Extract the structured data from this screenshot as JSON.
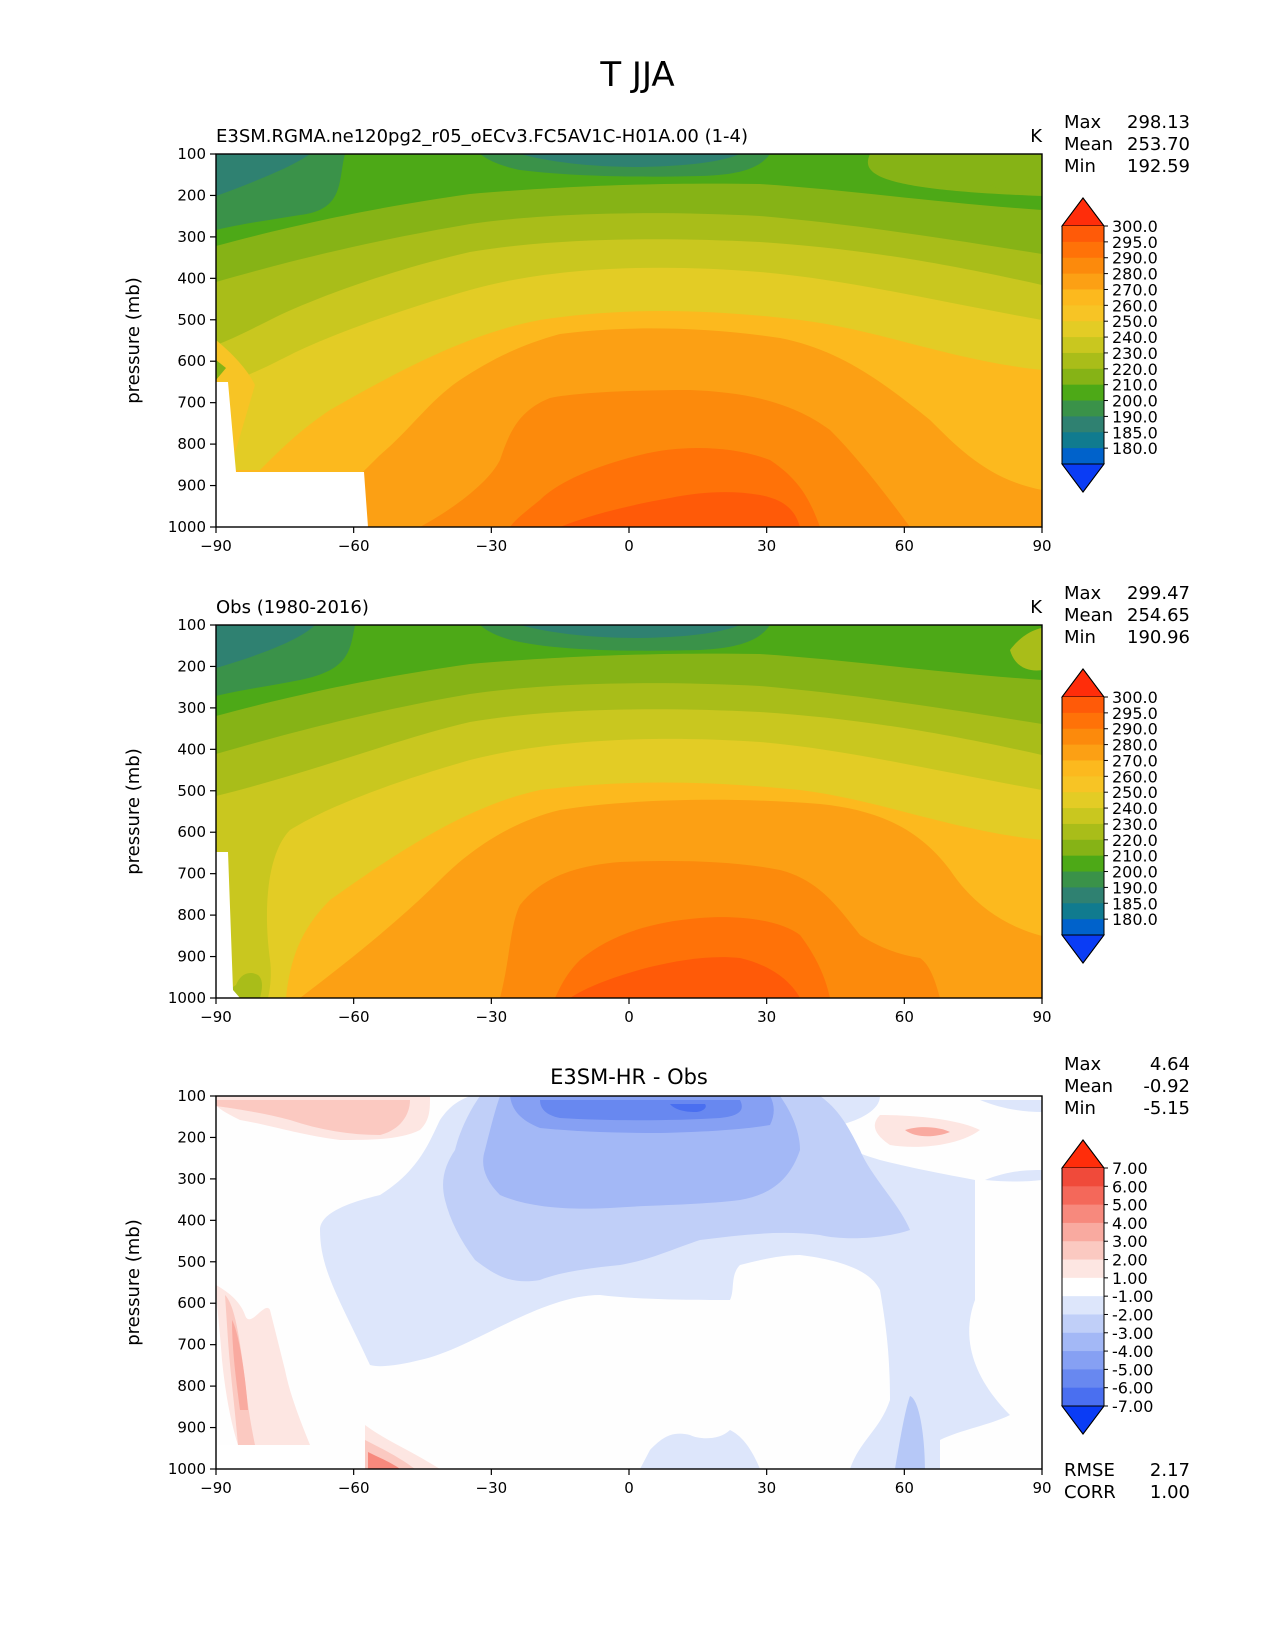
{
  "chart_data": {
    "type": "heatmap",
    "title": "T JJA",
    "xlim": [
      -90,
      90
    ],
    "ylim": [
      1000,
      100
    ],
    "x_ticks": [
      "−90",
      "−60",
      "−30",
      "0",
      "30",
      "60",
      "90"
    ],
    "y_ticks": [
      "100",
      "200",
      "300",
      "400",
      "500",
      "600",
      "700",
      "800",
      "900",
      "1000"
    ],
    "panels": [
      {
        "id": "model",
        "title_left": "E3SM.RGMA.ne120pg2_r05_oECv3.FC5AV1C-H01A.00 (1-4)",
        "title_center": "",
        "units": "K",
        "ylabel": "pressure (mb)",
        "stats": [
          {
            "label": "Max",
            "value": "298.13"
          },
          {
            "label": "Mean",
            "value": "253.70"
          },
          {
            "label": "Min",
            "value": "192.59"
          }
        ],
        "colorbar_levels": [
          "300.0",
          "295.0",
          "290.0",
          "280.0",
          "270.0",
          "260.0",
          "250.0",
          "240.0",
          "230.0",
          "220.0",
          "210.0",
          "200.0",
          "190.0",
          "185.0",
          "180.0"
        ],
        "colorbar_colors": [
          "#ff2d0a",
          "#ff5a08",
          "#ff7208",
          "#fc8a0c",
          "#fca014",
          "#fcb91e",
          "#f7c425",
          "#e3cc25",
          "#c9c71f",
          "#a9bd19",
          "#86b316",
          "#4da917",
          "#3a9249",
          "#2f8171",
          "#107b8f",
          "#0062cb",
          "#0a3cf5"
        ],
        "bottom_stats": []
      },
      {
        "id": "obs",
        "title_left": "Obs (1980-2016)",
        "title_center": "",
        "units": "K",
        "ylabel": "pressure (mb)",
        "stats": [
          {
            "label": "Max",
            "value": "299.47"
          },
          {
            "label": "Mean",
            "value": "254.65"
          },
          {
            "label": "Min",
            "value": "190.96"
          }
        ],
        "colorbar_levels": [
          "300.0",
          "295.0",
          "290.0",
          "280.0",
          "270.0",
          "260.0",
          "250.0",
          "240.0",
          "230.0",
          "220.0",
          "210.0",
          "200.0",
          "190.0",
          "185.0",
          "180.0"
        ],
        "colorbar_colors": [
          "#ff2d0a",
          "#ff5a08",
          "#ff7208",
          "#fc8a0c",
          "#fca014",
          "#fcb91e",
          "#f7c425",
          "#e3cc25",
          "#c9c71f",
          "#a9bd19",
          "#86b316",
          "#4da917",
          "#3a9249",
          "#2f8171",
          "#107b8f",
          "#0062cb",
          "#0a3cf5"
        ],
        "bottom_stats": []
      },
      {
        "id": "diff",
        "title_left": "",
        "title_center": "E3SM-HR - Obs",
        "units": "",
        "ylabel": "pressure (mb)",
        "stats": [
          {
            "label": "Max",
            "value": "4.64"
          },
          {
            "label": "Mean",
            "value": "-0.92"
          },
          {
            "label": "Min",
            "value": "-5.15"
          }
        ],
        "colorbar_levels": [
          "7.00",
          "6.00",
          "5.00",
          "4.00",
          "3.00",
          "2.00",
          "1.00",
          "-1.00",
          "-2.00",
          "-3.00",
          "-4.00",
          "-5.00",
          "-6.00",
          "-7.00"
        ],
        "colorbar_colors": [
          "#ff2d0a",
          "#f04a3a",
          "#f4685a",
          "#f7897d",
          "#f9aaa0",
          "#fbc9c1",
          "#fde6e2",
          "#ffffff",
          "#dde6fb",
          "#c0cff8",
          "#a3b8f6",
          "#86a0f3",
          "#6888f0",
          "#4a6ff0",
          "#0a3cf5"
        ],
        "bottom_stats": [
          {
            "label": "RMSE",
            "value": "2.17"
          },
          {
            "label": "CORR",
            "value": "1.00"
          }
        ]
      }
    ]
  }
}
